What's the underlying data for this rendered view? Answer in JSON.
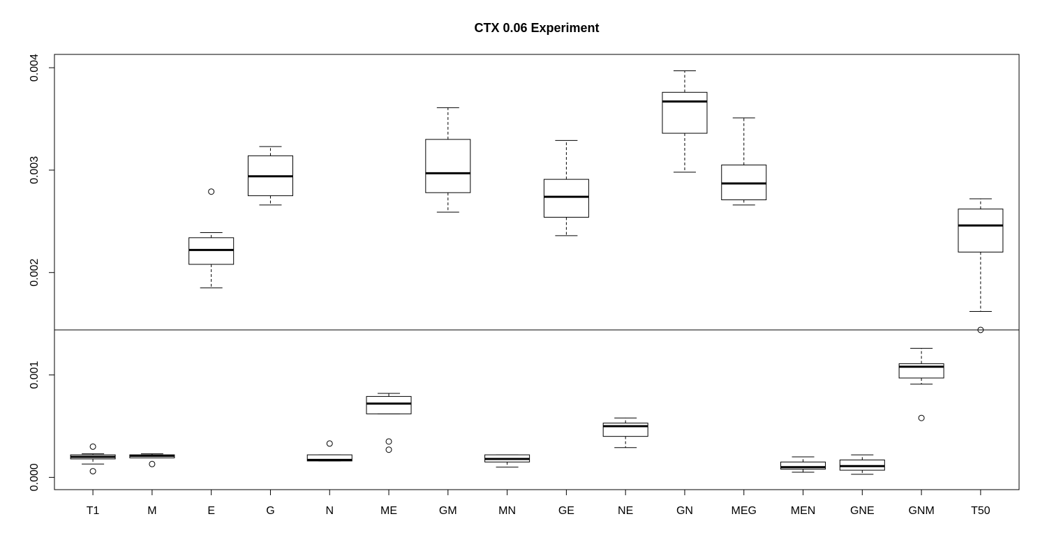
{
  "chart_data": {
    "type": "boxplot",
    "title": "CTX 0.06 Experiment",
    "xlabel": "",
    "ylabel": "",
    "ylim": [
      -0.00012,
      0.00413
    ],
    "yticks": [
      "0.000",
      "0.001",
      "0.002",
      "0.003",
      "0.004"
    ],
    "ytick_values": [
      0,
      0.001,
      0.002,
      0.003,
      0.004
    ],
    "reference_line": 0.00144,
    "grid": false,
    "categories": [
      "T1",
      "M",
      "E",
      "G",
      "N",
      "ME",
      "GM",
      "MN",
      "GE",
      "NE",
      "GN",
      "MEG",
      "MEN",
      "GNE",
      "GNM",
      "T50"
    ],
    "boxes": [
      {
        "category": "T1",
        "whisker_low": 0.00013,
        "q1": 0.00018,
        "median": 0.0002,
        "q3": 0.00022,
        "whisker_high": 0.00023,
        "outliers": [
          0.0003,
          6e-05
        ]
      },
      {
        "category": "M",
        "whisker_low": 0.00019,
        "q1": 0.00019,
        "median": 0.00021,
        "q3": 0.00022,
        "whisker_high": 0.00023,
        "outliers": [
          0.00013
        ]
      },
      {
        "category": "E",
        "whisker_low": 0.00185,
        "q1": 0.00208,
        "median": 0.00222,
        "q3": 0.00234,
        "whisker_high": 0.00239,
        "outliers": [
          0.00279
        ]
      },
      {
        "category": "G",
        "whisker_low": 0.00266,
        "q1": 0.00275,
        "median": 0.00294,
        "q3": 0.00314,
        "whisker_high": 0.00323,
        "outliers": []
      },
      {
        "category": "N",
        "whisker_low": 0.00016,
        "q1": 0.00016,
        "median": 0.00017,
        "q3": 0.00022,
        "whisker_high": 0.00022,
        "outliers": [
          0.00033
        ]
      },
      {
        "category": "ME",
        "whisker_low": 0.00062,
        "q1": 0.00062,
        "median": 0.00072,
        "q3": 0.00079,
        "whisker_high": 0.00082,
        "outliers": [
          0.00035,
          0.00027
        ]
      },
      {
        "category": "GM",
        "whisker_low": 0.00259,
        "q1": 0.00278,
        "median": 0.00297,
        "q3": 0.0033,
        "whisker_high": 0.00361,
        "outliers": []
      },
      {
        "category": "MN",
        "whisker_low": 0.0001,
        "q1": 0.00015,
        "median": 0.00018,
        "q3": 0.00022,
        "whisker_high": 0.00022,
        "outliers": []
      },
      {
        "category": "GE",
        "whisker_low": 0.00236,
        "q1": 0.00254,
        "median": 0.00274,
        "q3": 0.00291,
        "whisker_high": 0.00329,
        "outliers": []
      },
      {
        "category": "NE",
        "whisker_low": 0.00029,
        "q1": 0.0004,
        "median": 0.0005,
        "q3": 0.00053,
        "whisker_high": 0.00058,
        "outliers": []
      },
      {
        "category": "GN",
        "whisker_low": 0.00298,
        "q1": 0.00336,
        "median": 0.00367,
        "q3": 0.00376,
        "whisker_high": 0.00397,
        "outliers": []
      },
      {
        "category": "MEG",
        "whisker_low": 0.00266,
        "q1": 0.00271,
        "median": 0.00287,
        "q3": 0.00305,
        "whisker_high": 0.00351,
        "outliers": []
      },
      {
        "category": "MEN",
        "whisker_low": 5e-05,
        "q1": 8e-05,
        "median": 0.0001,
        "q3": 0.00015,
        "whisker_high": 0.0002,
        "outliers": []
      },
      {
        "category": "GNE",
        "whisker_low": 3e-05,
        "q1": 7e-05,
        "median": 0.00011,
        "q3": 0.00017,
        "whisker_high": 0.00022,
        "outliers": []
      },
      {
        "category": "GNM",
        "whisker_low": 0.00091,
        "q1": 0.00097,
        "median": 0.00108,
        "q3": 0.00111,
        "whisker_high": 0.00126,
        "outliers": [
          0.00058
        ]
      },
      {
        "category": "T50",
        "whisker_low": 0.00162,
        "q1": 0.0022,
        "median": 0.00246,
        "q3": 0.00262,
        "whisker_high": 0.00272,
        "outliers": [
          0.00144
        ]
      }
    ]
  }
}
